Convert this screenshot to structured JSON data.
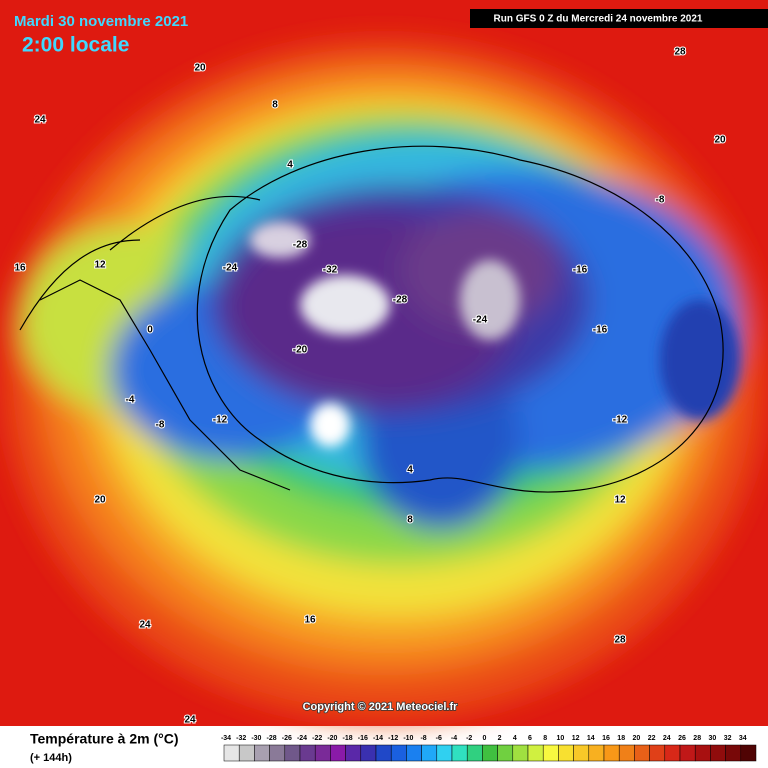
{
  "header": {
    "date": "Mardi 30 novembre 2021",
    "time": "2:00 locale",
    "run": "Run GFS 0 Z du Mercredi 24 novembre 2021"
  },
  "map": {
    "copyright": "Copyright © 2021 Meteociel.fr",
    "labels": [
      "24",
      "20",
      "28",
      "16",
      "12",
      "8",
      "4",
      "0",
      "-4",
      "-8",
      "-12",
      "-16",
      "-20",
      "-24",
      "-28",
      "-32",
      "-28",
      "-24",
      "-16",
      "-12",
      "-8",
      "4",
      "12",
      "20",
      "24",
      "28",
      "20",
      "16",
      "8",
      "24"
    ]
  },
  "legend": {
    "title": "Température à 2m (°C)",
    "lead": "(+ 144h)",
    "scale": [
      -34,
      -32,
      -30,
      -28,
      -26,
      -24,
      -22,
      -20,
      -18,
      -16,
      -14,
      -12,
      -10,
      -8,
      -6,
      -4,
      -2,
      0,
      2,
      4,
      6,
      8,
      10,
      12,
      14,
      16,
      18,
      20,
      22,
      24,
      26,
      28,
      30,
      32,
      34
    ]
  }
}
